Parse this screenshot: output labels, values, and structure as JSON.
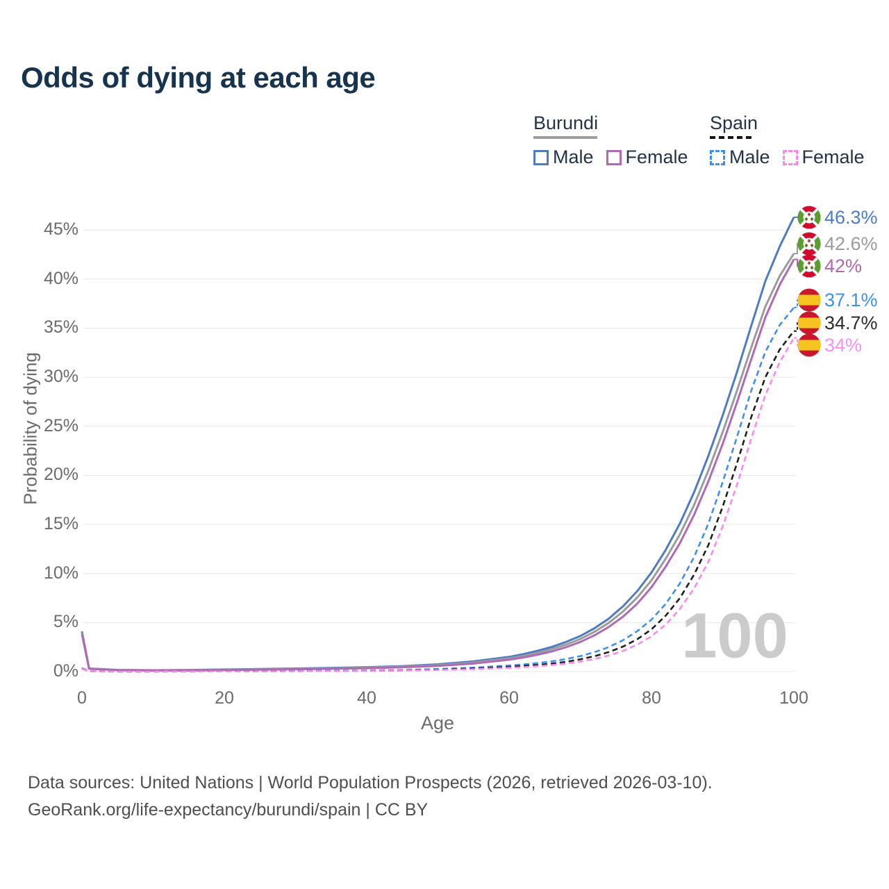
{
  "title": "Odds of dying at each age",
  "legend": {
    "groups": [
      {
        "title": "Burundi",
        "line_style": "solid",
        "underline_color": "#9e9e9e",
        "items": [
          {
            "label": "Male",
            "color": "#4d7cc4",
            "dashed": false
          },
          {
            "label": "Female",
            "color": "#b069b4",
            "dashed": false
          }
        ]
      },
      {
        "title": "Spain",
        "line_style": "dashed",
        "underline_color": "#141414",
        "items": [
          {
            "label": "Male",
            "color": "#3f8ff0",
            "dashed": true
          },
          {
            "label": "Female",
            "color": "#fb87ef",
            "dashed": true
          }
        ]
      }
    ]
  },
  "chart_data": {
    "type": "line",
    "title": "Odds of dying at each age",
    "xlabel": "Age",
    "ylabel": "Probability of dying",
    "xlim": [
      0,
      100
    ],
    "ylim": [
      0,
      47
    ],
    "grid": "horizontal-only",
    "legend_position": "top-right",
    "age_watermark": "100",
    "x_ticks": [
      0,
      20,
      40,
      60,
      80,
      100
    ],
    "y_tick_labels": [
      "0%",
      "5%",
      "10%",
      "15%",
      "20%",
      "25%",
      "30%",
      "35%",
      "40%",
      "45%"
    ],
    "y_tick_values": [
      0,
      5,
      10,
      15,
      20,
      25,
      30,
      35,
      40,
      45
    ],
    "ages": [
      0,
      1,
      5,
      10,
      15,
      20,
      25,
      30,
      35,
      40,
      45,
      50,
      55,
      60,
      62,
      64,
      66,
      68,
      70,
      72,
      74,
      76,
      78,
      80,
      82,
      84,
      86,
      88,
      90,
      92,
      94,
      96,
      98,
      100
    ],
    "series": [
      {
        "name": "Burundi Male",
        "country": "Burundi",
        "sex": "Male",
        "color": "#4d7cc4",
        "dashed": false,
        "flag": "burundi",
        "end_label": {
          "text": "46.3%",
          "color": "#4a7dc9"
        },
        "values": [
          4.1,
          0.32,
          0.18,
          0.14,
          0.17,
          0.22,
          0.27,
          0.32,
          0.38,
          0.45,
          0.56,
          0.74,
          1.05,
          1.5,
          1.78,
          2.12,
          2.52,
          3.02,
          3.62,
          4.42,
          5.4,
          6.65,
          8.2,
          10.1,
          12.4,
          15.1,
          18.3,
          22.0,
          26.1,
          30.5,
          35.2,
          39.8,
          43.3,
          46.3
        ]
      },
      {
        "name": "Burundi Both sexes",
        "country": "Burundi",
        "sex": "Both",
        "color": "#9b9b9b",
        "dashed": false,
        "flag": "burundi",
        "end_label": {
          "text": "42.6%",
          "color": "#9b9b9b"
        },
        "values": [
          3.95,
          0.3,
          0.16,
          0.13,
          0.15,
          0.19,
          0.23,
          0.28,
          0.33,
          0.4,
          0.5,
          0.66,
          0.93,
          1.35,
          1.6,
          1.91,
          2.29,
          2.75,
          3.32,
          4.06,
          4.97,
          6.12,
          7.55,
          9.3,
          11.5,
          14.0,
          17.0,
          20.5,
          24.4,
          28.6,
          33.0,
          37.2,
          40.3,
          42.6
        ]
      },
      {
        "name": "Burundi Female",
        "country": "Burundi",
        "sex": "Female",
        "color": "#b069b4",
        "dashed": false,
        "flag": "burundi",
        "end_label": {
          "text": "42%",
          "color": "#b168b1"
        },
        "values": [
          3.8,
          0.28,
          0.15,
          0.12,
          0.13,
          0.16,
          0.2,
          0.24,
          0.29,
          0.35,
          0.44,
          0.58,
          0.82,
          1.21,
          1.44,
          1.72,
          2.06,
          2.49,
          3.02,
          3.7,
          4.55,
          5.6,
          6.92,
          8.6,
          10.7,
          13.1,
          16.0,
          19.4,
          23.2,
          27.4,
          31.8,
          36.1,
          39.4,
          42.0
        ]
      },
      {
        "name": "Spain Male",
        "country": "Spain",
        "sex": "Male",
        "color": "#3f8ff0",
        "dashed": true,
        "flag": "spain",
        "end_label": {
          "text": "37.1%",
          "color": "#3e8ff0"
        },
        "values": [
          0.35,
          0.03,
          0.012,
          0.012,
          0.022,
          0.042,
          0.052,
          0.062,
          0.08,
          0.11,
          0.16,
          0.26,
          0.4,
          0.62,
          0.73,
          0.87,
          1.05,
          1.28,
          1.58,
          1.98,
          2.5,
          3.2,
          4.12,
          5.3,
          6.9,
          9.0,
          11.7,
          15.1,
          19.3,
          23.9,
          28.6,
          32.6,
          35.3,
          37.1
        ]
      },
      {
        "name": "Spain Both sexes",
        "country": "Spain",
        "sex": "Both",
        "color": "#1f1f1f",
        "dashed": true,
        "flag": "spain",
        "end_label": {
          "text": "34.7%",
          "color": "#2b2b2b"
        },
        "values": [
          0.32,
          0.026,
          0.01,
          0.01,
          0.017,
          0.031,
          0.04,
          0.05,
          0.066,
          0.09,
          0.13,
          0.2,
          0.31,
          0.48,
          0.57,
          0.68,
          0.82,
          1.0,
          1.25,
          1.57,
          1.99,
          2.55,
          3.3,
          4.3,
          5.7,
          7.5,
          9.9,
          12.9,
          16.8,
          21.2,
          25.9,
          30.0,
          32.8,
          34.7
        ]
      },
      {
        "name": "Spain Female",
        "country": "Spain",
        "sex": "Female",
        "color": "#fb87ef",
        "dashed": true,
        "flag": "spain",
        "end_label": {
          "text": "34%",
          "color": "#fc8df2"
        },
        "values": [
          0.3,
          0.022,
          0.009,
          0.009,
          0.014,
          0.023,
          0.031,
          0.041,
          0.056,
          0.076,
          0.11,
          0.16,
          0.25,
          0.38,
          0.45,
          0.55,
          0.67,
          0.82,
          1.02,
          1.29,
          1.64,
          2.11,
          2.74,
          3.6,
          4.8,
          6.4,
          8.5,
          11.2,
          14.8,
          19.0,
          23.7,
          28.2,
          31.5,
          34.0
        ]
      }
    ]
  },
  "flags": {
    "burundi": {
      "red": "#d20a2e",
      "green": "#5a9e32",
      "white": "#ffffff"
    },
    "spain": {
      "red": "#c9182c",
      "yellow": "#f7c321"
    }
  },
  "footer": {
    "line1": "Data sources: United Nations | World Population Prospects (2026, retrieved 2026-03-10).",
    "line2": "GeoRank.org/life-expectancy/burundi/spain | CC BY"
  }
}
